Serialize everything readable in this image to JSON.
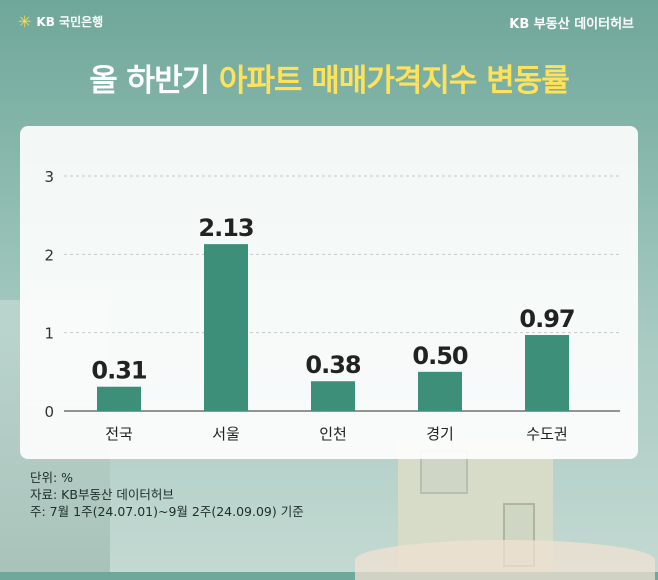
{
  "header": {
    "brand_left": "KB 국민은행",
    "brand_right": "KB 부동산 데이터허브",
    "logo_icon": "kb-star-icon"
  },
  "title": {
    "prefix": "올 하반기 ",
    "highlight": "아파트 매매가격지수 변동률"
  },
  "chart_data": {
    "type": "bar",
    "categories": [
      "전국",
      "서울",
      "인천",
      "경기",
      "수도권"
    ],
    "values": [
      0.31,
      2.13,
      0.38,
      0.5,
      0.97
    ],
    "data_labels": [
      "0.31",
      "2.13",
      "0.38",
      "0.50",
      "0.97"
    ],
    "yticks": [
      "0",
      "1",
      "2",
      "3"
    ],
    "ylim": [
      0,
      3
    ],
    "grid": "horizontal dashed",
    "bar_color": "#3e8f79",
    "title": "",
    "xlabel": "",
    "ylabel": ""
  },
  "footnotes": {
    "unit": "단위: %",
    "source": "자료: KB부동산 데이터허브",
    "note": "주: 7월 1주(24.07.01)~9월 2주(24.09.09) 기준"
  },
  "colors": {
    "accent": "#ffe259",
    "bar": "#3e8f79",
    "background": "#8fbcb1"
  }
}
